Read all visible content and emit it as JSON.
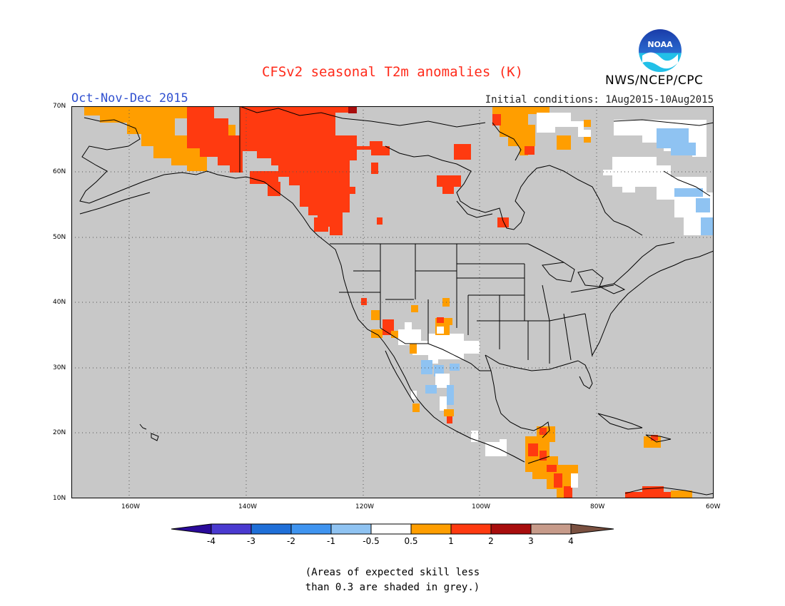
{
  "title": "CFSv2 seasonal T2m anomalies (K)",
  "season": "Oct-Nov-Dec 2015",
  "agency": "NWS/NCEP/CPC",
  "initial_conditions": "Initial conditions: 1Aug2015-10Aug2015",
  "logo_text": "NOAA",
  "lat_labels": [
    "70N",
    "60N",
    "50N",
    "40N",
    "30N",
    "20N",
    "10N"
  ],
  "lon_labels": [
    "160W",
    "140W",
    "120W",
    "100W",
    "80W",
    "60W"
  ],
  "colorbar": {
    "labels": [
      "-4",
      "-3",
      "-2",
      "-1",
      "-0.5",
      "0.5",
      "1",
      "2",
      "3",
      "4"
    ],
    "colors": [
      "#2a0a9a",
      "#4a3ad0",
      "#1f6fd8",
      "#3f94f0",
      "#8fc3f2",
      "#ffffff",
      "#ff9e00",
      "#ff3a10",
      "#a80d0d",
      "#c79b8a",
      "#7a5040"
    ]
  },
  "note_lines": [
    "(Areas of expected skill less",
    "than 0.3 are shaded in grey.)"
  ],
  "colors": {
    "grey_mask": "#c8c8c8",
    "title": "#ff2a1a",
    "season": "#3050d0"
  }
}
